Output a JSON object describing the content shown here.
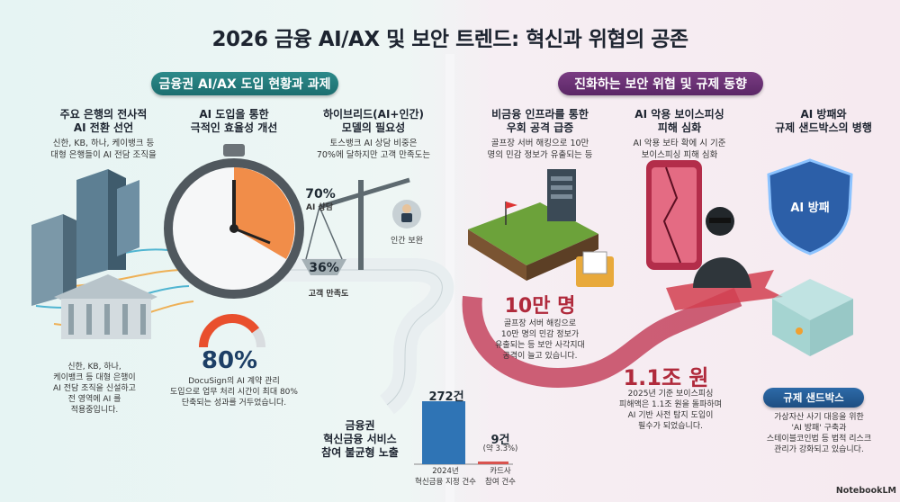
{
  "title": "2026 금융 AI/AX 및 보안 트렌드: 혁신과 위협의 공존",
  "left_section": {
    "pill": "금융권 AI/AX 도입 현황과 과제",
    "col1": {
      "heading": "주요 은행의 전사적\nAI 전환 선언",
      "text": "신한, KB, 하나, 케이뱅크 등\n대형 은행들이 AI 전담 조직을",
      "bottom_text": "신한, KB, 하나,\n케이뱅크 등 대형 은행이\nAI 전담 조직을 신설하고\n전 영역에 AI 를\n적용중입니다."
    },
    "col2": {
      "heading": "AI 도입을 통한\n극적인 효율성 개선",
      "gauge_value": "80%",
      "gauge_level": 0.8,
      "text": "DocuSign의 AI 계약 관리\n도입으로 업무 처리 시간이 최대 80%\n단축되는 성과를 거두었습니다."
    },
    "col3": {
      "heading": "하이브리드(AI+인간)\n모델의 필요성",
      "text": "토스뱅크 AI 상담 비중은\n70%에 달하지만 고객 만족도는",
      "scale_ai_pct": "70%",
      "scale_ai_label": "AI 상담",
      "scale_sat_pct": "36%",
      "scale_sat_label": "고객 만족도",
      "human_label": "인간 보완"
    },
    "bar_chart": {
      "caption": "금융권\n혁신금융 서비스\n참여 불균형 노출",
      "bar1_value_label": "272건",
      "bar1_label": "2024년\n혁신금융 지정 건수",
      "bar2_value_label": "9건",
      "bar2_share": "(약 3.3%)",
      "bar2_label": "카드사\n참여 건수"
    }
  },
  "chart_data": {
    "type": "bar",
    "categories": [
      "2024년 혁신금융 지정 건수",
      "카드사 참여 건수"
    ],
    "values": [
      272,
      9
    ],
    "colors": [
      "#2f74b5",
      "#d9534f"
    ]
  },
  "right_section": {
    "pill": "진화하는 보안 위협 및 규제 동향",
    "col1": {
      "heading": "비금융 인프라를 통한\n우회 공격 급증",
      "text": "골프장 서버 해킹으로 10만\n명의 민감 정보가 유출되는 등",
      "big": "10만 명",
      "big_text": "골프장 서버 해킹으로\n10만 명의 민감 정보가\n유출되는 등 보안 사각지대\n공격이 늘고 있습니다."
    },
    "col2": {
      "heading": "AI 악용 보이스피싱\n피해 심화",
      "text": "AI 악용 보타 확에 시 기준\n보이스피싱 피해 심화",
      "big": "1.1조 원",
      "big_text": "2025년 기준 보이스피싱\n피해액은 1.1조 원을 돌파하며\nAI 기반 사전 탐지 도입이\n필수가 되었습니다."
    },
    "col3": {
      "heading": "AI 방패와\n규제 샌드박스의 병행",
      "shield_label": "AI 방패",
      "pill": "규제 샌드박스",
      "text": "가상자산 사기 대응을 위한\n'AI 방패' 구축과\n스테이블코인법 등 법적 리스크\n관리가 강화되고 있습니다."
    }
  },
  "footer": {
    "logo": "NotebookLM"
  },
  "colors": {
    "teal": "#1c6e70",
    "purple": "#5b2766",
    "red": "#c0392b",
    "blue": "#2f74b5"
  }
}
